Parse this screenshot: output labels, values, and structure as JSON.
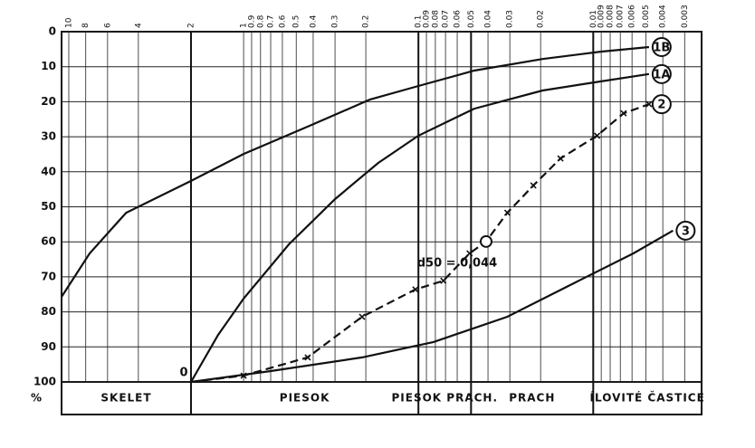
{
  "chart_data": {
    "type": "line",
    "y_label": "%",
    "xlim": [
      11,
      0.0024
    ],
    "xscale": "log",
    "ylim": [
      0,
      100
    ],
    "yticks": [
      0,
      10,
      20,
      30,
      40,
      50,
      60,
      70,
      80,
      90,
      100
    ],
    "xticks": [
      10,
      8,
      6,
      4,
      2,
      1,
      0.9,
      0.8,
      0.7,
      0.6,
      0.5,
      0.4,
      0.3,
      0.2,
      0.1,
      0.09,
      0.08,
      0.07,
      0.06,
      0.05,
      0.04,
      0.03,
      0.02,
      0.01,
      0.009,
      0.008,
      0.007,
      0.006,
      0.005,
      0.004,
      0.003
    ],
    "grid": true,
    "color": "#111111",
    "sections": [
      {
        "label": "SKELET",
        "from": 11,
        "to": 2
      },
      {
        "label": "PIESOK",
        "from": 2,
        "to": 0.1
      },
      {
        "label": "PIESOK PRACH.",
        "from": 0.1,
        "to": 0.05
      },
      {
        "label": "PRACH",
        "from": 0.05,
        "to": 0.01
      },
      {
        "label": "ÍLOVITÉ ČASTICE",
        "from": 0.01,
        "to": 0.0024
      }
    ],
    "series": [
      {
        "name": "1B",
        "color": "#111111",
        "dashed": false,
        "markers": false,
        "x": [
          11,
          7.6,
          4.7,
          2,
          1,
          0.43,
          0.19,
          0.1,
          0.048,
          0.0195,
          0.0091,
          0.0048
        ],
        "values": [
          75.7,
          63.3,
          51.7,
          42.6,
          34.9,
          27.1,
          19.4,
          15.5,
          11.1,
          7.8,
          5.7,
          4.4
        ]
      },
      {
        "name": "1A",
        "color": "#111111",
        "dashed": false,
        "markers": false,
        "x": [
          2,
          1.4,
          1,
          0.55,
          0.3,
          0.17,
          0.1,
          0.048,
          0.0195,
          0.0091,
          0.0048
        ],
        "values": [
          100,
          86.6,
          76.2,
          60.7,
          47.8,
          37.5,
          29.7,
          22,
          16.8,
          14.2,
          12.1
        ]
      },
      {
        "name": "2",
        "color": "#111111",
        "dashed": true,
        "markers": true,
        "x": [
          2,
          1,
          0.43,
          0.21,
          0.104,
          0.072,
          0.051,
          0.041,
          0.031,
          0.022,
          0.0154,
          0.0095,
          0.0067,
          0.0048
        ],
        "values": [
          100,
          98.2,
          93,
          81.4,
          73.6,
          71.1,
          63.3,
          59.9,
          51.7,
          43.9,
          36.2,
          29.7,
          23.3,
          20.7
        ]
      },
      {
        "name": "3",
        "color": "#111111",
        "dashed": false,
        "markers": false,
        "x": [
          2,
          0.7,
          0.21,
          0.082,
          0.031,
          0.0121,
          0.0059,
          0.0035
        ],
        "values": [
          100,
          96.9,
          93,
          88.6,
          81.4,
          71.1,
          63.3,
          56.8
        ]
      }
    ],
    "origin_label": "0",
    "d50": {
      "label": "d50 = 0,044",
      "x": 0.041,
      "y": 59.9
    }
  }
}
